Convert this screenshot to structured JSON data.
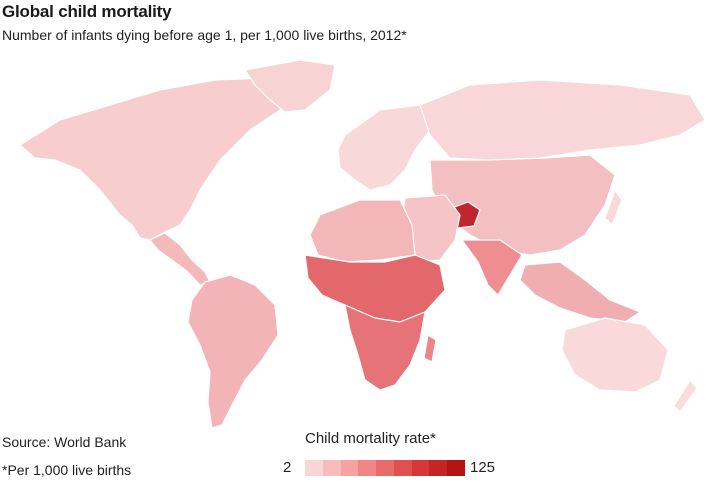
{
  "title": "Global child mortality",
  "subtitle": "Number of infants dying before age 1, per 1,000 live births, 2012*",
  "source": "Source: World Bank",
  "footnote": "*Per 1,000 live births",
  "legend": {
    "title": "Child mortality rate*",
    "min_label": "2",
    "max_label": "125",
    "min": 2,
    "max": 125,
    "colors": [
      "#fcd6d6",
      "#f8bcbc",
      "#f4a2a2",
      "#ef8585",
      "#e96a6a",
      "#e05050",
      "#d43838",
      "#c72424",
      "#b51414"
    ]
  },
  "map": {
    "land_color": "#f7cfd0",
    "border_color": "#ffffff",
    "highlight_country": "Afghanistan"
  }
}
